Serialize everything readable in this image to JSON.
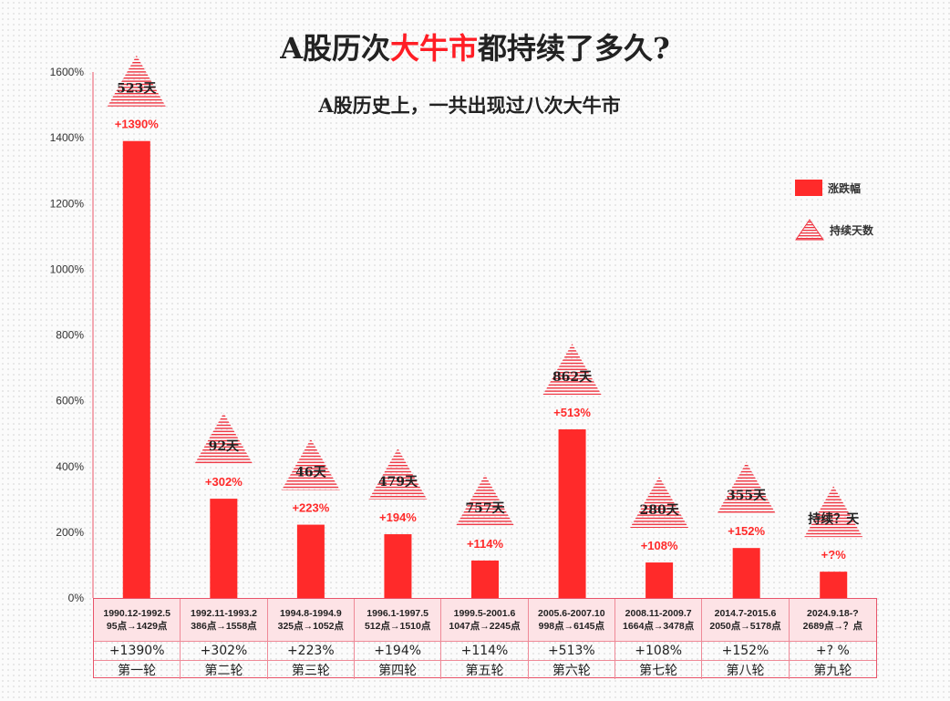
{
  "header": {
    "title_pre": "A股历次",
    "title_highlight": "大牛市",
    "title_post": "都持续了多久?",
    "subtitle": "A股历史上，一共出现过八次大牛市"
  },
  "legend": {
    "rise_label": "涨跌幅",
    "duration_label": "持续天数"
  },
  "colors": {
    "bar": "#ff2a2a",
    "label": "#ff2a2a",
    "triangle": "#ef3340",
    "table_border": "#e8546a",
    "table_fill": "#fde3e6"
  },
  "chart_data": {
    "type": "bar",
    "categories": [
      "第一轮",
      "第二轮",
      "第三轮",
      "第四轮",
      "第五轮",
      "第六轮",
      "第七轮",
      "第八轮",
      "第九轮"
    ],
    "series": [
      {
        "name": "涨跌幅",
        "values": [
          1390,
          302,
          223,
          194,
          114,
          513,
          108,
          152,
          80
        ],
        "labels": [
          "+1390%",
          "+302%",
          "+223%",
          "+194%",
          "+114%",
          "+513%",
          "+108%",
          "+152%",
          "+?%"
        ]
      },
      {
        "name": "持续天数",
        "labels": [
          "523天",
          "92天",
          "46天",
          "479天",
          "757天",
          "862天",
          "280天",
          "355天",
          "持续？天"
        ]
      }
    ],
    "ylim": [
      0,
      1600
    ],
    "yticks": [
      "0%",
      "200%",
      "400%",
      "600%",
      "800%",
      "1000%",
      "1200%",
      "1400%",
      "1600%"
    ],
    "legend_position": "top-right",
    "table": {
      "periods": [
        "1990.12-1992.5",
        "1992.11-1993.2",
        "1994.8-1994.9",
        "1996.1-1997.5",
        "1999.5-2001.6",
        "2005.6-2007.10",
        "2008.11-2009.7",
        "2014.7-2015.6",
        "2024.9.18-?"
      ],
      "points": [
        "95点→1429点",
        "386点→1558点",
        "325点→1052点",
        "512点→1510点",
        "1047点→2245点",
        "998点→6145点",
        "1664点→3478点",
        "2050点→5178点",
        "2689点→？点"
      ],
      "rises": [
        "+1390%",
        "+302%",
        "+223%",
        "+194%",
        "+114%",
        "+513%",
        "+108%",
        "+152%",
        "+? %"
      ]
    }
  }
}
